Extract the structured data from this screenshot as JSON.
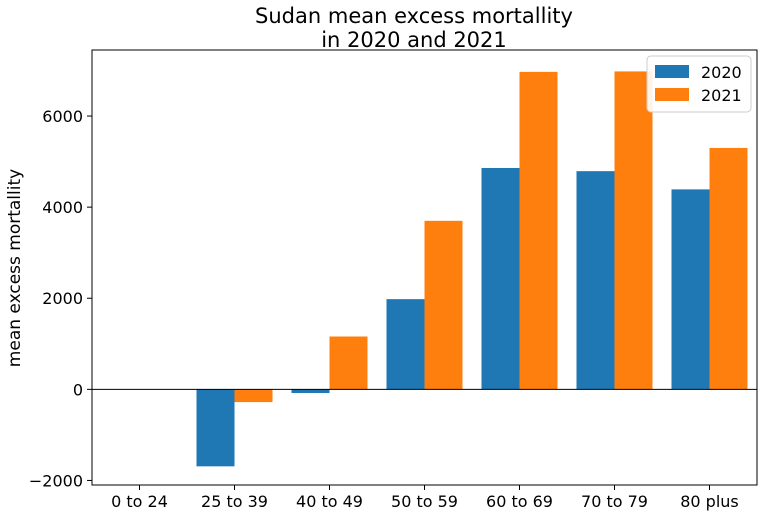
{
  "chart_data": {
    "type": "bar",
    "title": "Sudan mean excess mortallity\nin 2020 and 2021",
    "ylabel": "mean excess mortallity",
    "xlabel": "",
    "categories": [
      "0 to 24",
      "25 to 39",
      "40 to 49",
      "50 to 59",
      "60 to 69",
      "70 to 79",
      "80 plus"
    ],
    "series": [
      {
        "name": "2020",
        "color": "#1f77b4",
        "values": [
          0,
          -1690,
          -80,
          1980,
          4860,
          4790,
          4390
        ]
      },
      {
        "name": "2021",
        "color": "#ff7f0e",
        "values": [
          0,
          -280,
          1160,
          3700,
          6970,
          6980,
          5300
        ]
      }
    ],
    "ylim": [
      -2100,
      7450
    ],
    "yticks": [
      -2000,
      0,
      2000,
      4000,
      6000
    ],
    "ytick_labels": [
      "−2000",
      "0",
      "2000",
      "4000",
      "6000"
    ],
    "zero_line": true,
    "grid": false,
    "legend_position": "upper right"
  }
}
